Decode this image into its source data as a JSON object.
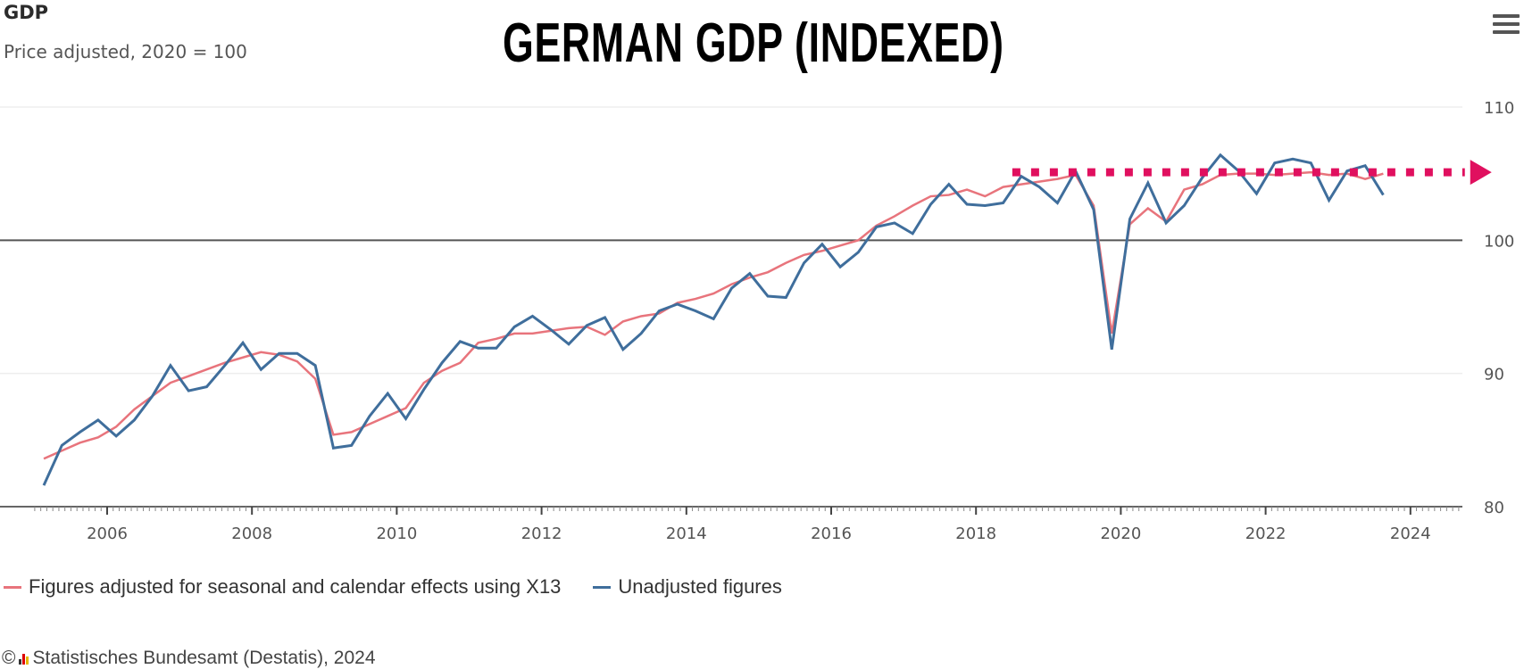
{
  "header": {
    "title": "GDP",
    "subtitle": "Price adjusted, 2020 = 100",
    "headline": "GERMAN GDP (INDEXED)",
    "menu_icon": "hamburger-menu-icon"
  },
  "legend": {
    "items": [
      {
        "label": "Figures adjusted for seasonal and calendar effects using X13",
        "color": "#e8747c"
      },
      {
        "label": "Unadjusted figures",
        "color": "#3f6e9c"
      }
    ]
  },
  "credits": {
    "copyright": "©",
    "text": "Statistisches Bundesamt (Destatis), 2024"
  },
  "colors": {
    "adjusted": "#e8747c",
    "unadjusted": "#3f6e9c",
    "annotation": "#e0105f",
    "reference_line": "#555555",
    "grid": "#eeeeee"
  },
  "chart_data": {
    "type": "line",
    "title": "GDP",
    "subtitle": "Price adjusted, 2020 = 100",
    "xlabel": "",
    "ylabel": "",
    "x_start": "2005 Q1",
    "x_frequency": "quarterly",
    "xlim": [
      2005,
      2024.75
    ],
    "ylim": [
      80,
      110
    ],
    "x_ticks": [
      "2006",
      "2008",
      "2010",
      "2012",
      "2014",
      "2016",
      "2018",
      "2020",
      "2022",
      "2024"
    ],
    "x_tick_values": [
      2006,
      2008,
      2010,
      2012,
      2014,
      2016,
      2018,
      2020,
      2022,
      2024
    ],
    "y_ticks": [
      80,
      90,
      100,
      110
    ],
    "y_axis_side": "right",
    "grid": true,
    "reference_line": 100,
    "legend_position": "bottom-left",
    "series": [
      {
        "name": "Figures adjusted for seasonal and calendar effects using X13",
        "values": [
          83.6,
          84.2,
          84.8,
          85.2,
          86.0,
          87.3,
          88.3,
          89.3,
          89.8,
          90.3,
          90.8,
          91.2,
          91.6,
          91.4,
          90.9,
          89.6,
          85.4,
          85.6,
          86.2,
          86.8,
          87.4,
          89.3,
          90.2,
          90.8,
          92.3,
          92.6,
          93.0,
          93.0,
          93.2,
          93.4,
          93.5,
          92.9,
          93.9,
          94.3,
          94.5,
          95.3,
          95.6,
          96.0,
          96.7,
          97.2,
          97.6,
          98.3,
          98.9,
          99.2,
          99.6,
          100.0,
          101.1,
          101.8,
          102.6,
          103.3,
          103.4,
          103.8,
          103.3,
          104.0,
          104.2,
          104.4,
          104.6,
          104.9,
          102.6,
          93.0,
          101.2,
          102.4,
          101.4,
          103.8,
          104.2,
          104.9,
          105.0,
          105.0,
          104.9,
          105.0,
          105.1,
          104.9,
          105.0,
          104.6,
          105.0
        ]
      },
      {
        "name": "Unadjusted figures",
        "values": [
          81.6,
          84.6,
          85.6,
          86.5,
          85.3,
          86.5,
          88.3,
          90.6,
          88.7,
          89.0,
          90.6,
          92.3,
          90.3,
          91.5,
          91.5,
          90.6,
          84.4,
          84.6,
          86.8,
          88.5,
          86.6,
          88.8,
          90.8,
          92.4,
          91.9,
          91.9,
          93.5,
          94.3,
          93.3,
          92.2,
          93.6,
          94.2,
          91.8,
          93.0,
          94.7,
          95.2,
          94.7,
          94.1,
          96.4,
          97.5,
          95.8,
          95.7,
          98.3,
          99.7,
          98.0,
          99.1,
          101.0,
          101.3,
          100.5,
          102.7,
          104.2,
          102.7,
          102.6,
          102.8,
          104.8,
          104.0,
          102.8,
          105.2,
          102.3,
          91.8,
          101.6,
          104.3,
          101.3,
          102.6,
          104.7,
          106.4,
          105.2,
          103.5,
          105.8,
          106.1,
          105.8,
          103.0,
          105.2,
          105.6,
          103.4
        ]
      }
    ],
    "annotations": [
      {
        "type": "dotted-arrow",
        "value": 105.1,
        "from": "2018 Q3",
        "to": "2024 Q4",
        "color": "#e0105f"
      }
    ]
  }
}
